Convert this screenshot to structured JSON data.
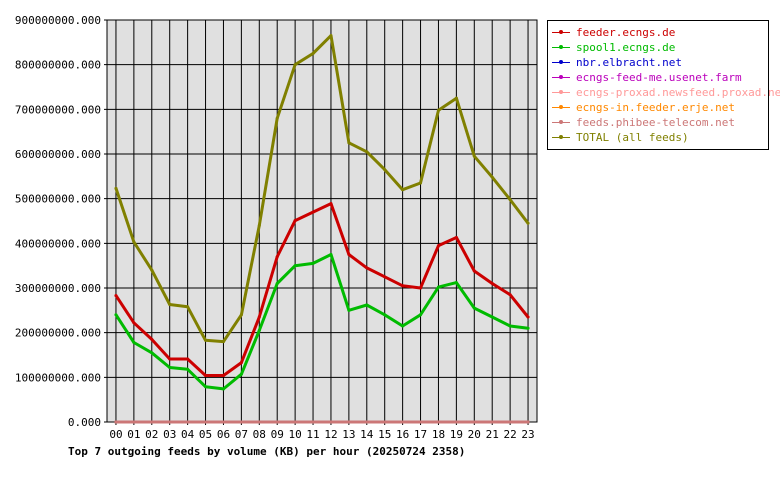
{
  "chart_data": {
    "type": "line",
    "title": "Top 7 outgoing feeds by volume (KB) per hour (20250724 2358)",
    "xlabel": "",
    "ylabel": "",
    "categories": [
      "00",
      "01",
      "02",
      "03",
      "04",
      "05",
      "06",
      "07",
      "08",
      "09",
      "10",
      "11",
      "12",
      "13",
      "14",
      "15",
      "16",
      "17",
      "18",
      "19",
      "20",
      "21",
      "22",
      "23"
    ],
    "ylim": [
      0,
      900000000
    ],
    "yticks": [
      "0.000",
      "100000000.000",
      "200000000.000",
      "300000000.000",
      "400000000.000",
      "500000000.000",
      "600000000.000",
      "700000000.000",
      "800000000.000",
      "900000000.000"
    ],
    "grid": true,
    "legend_position": "top-right",
    "series": [
      {
        "name": "feeder.ecngs.de",
        "color": "#cc0000",
        "values": [
          283000000,
          222000000,
          185000000,
          141000000,
          141000000,
          104000000,
          104000000,
          133000000,
          235000000,
          370000000,
          451000000,
          470000000,
          489000000,
          375000000,
          345000000,
          325000000,
          305000000,
          300000000,
          395000000,
          413000000,
          338000000,
          310000000,
          285000000,
          235000000
        ]
      },
      {
        "name": "spool1.ecngs.de",
        "color": "#00bb00",
        "values": [
          240000000,
          178000000,
          155000000,
          122000000,
          118000000,
          79000000,
          74000000,
          107000000,
          205000000,
          310000000,
          350000000,
          355000000,
          375000000,
          250000000,
          262000000,
          240000000,
          215000000,
          240000000,
          302000000,
          312000000,
          255000000,
          235000000,
          215000000,
          210000000
        ]
      },
      {
        "name": "nbr.elbracht.net",
        "color": "#0000cc",
        "values": [
          0,
          0,
          0,
          0,
          0,
          0,
          0,
          0,
          0,
          0,
          0,
          0,
          0,
          0,
          0,
          0,
          0,
          0,
          0,
          0,
          0,
          0,
          0,
          0
        ]
      },
      {
        "name": "ecngs-feed-me.usenet.farm",
        "color": "#bb00bb",
        "values": [
          0,
          0,
          0,
          0,
          0,
          0,
          0,
          0,
          0,
          0,
          0,
          0,
          0,
          0,
          0,
          0,
          0,
          0,
          0,
          0,
          0,
          0,
          0,
          0
        ]
      },
      {
        "name": "ecngs-proxad.newsfeed.proxad.net",
        "color": "#ff9999",
        "values": [
          0,
          0,
          0,
          0,
          0,
          0,
          0,
          0,
          0,
          0,
          0,
          0,
          0,
          0,
          0,
          0,
          0,
          0,
          0,
          0,
          0,
          0,
          0,
          0
        ]
      },
      {
        "name": "ecngs-in.feeder.erje.net",
        "color": "#ff8800",
        "values": [
          0,
          0,
          0,
          0,
          0,
          0,
          0,
          0,
          0,
          0,
          0,
          0,
          0,
          0,
          0,
          0,
          0,
          0,
          0,
          0,
          0,
          0,
          0,
          0
        ]
      },
      {
        "name": "feeds.phibee-telecom.net",
        "color": "#cc7777",
        "values": [
          0,
          0,
          0,
          0,
          0,
          0,
          0,
          0,
          0,
          0,
          0,
          0,
          0,
          0,
          0,
          0,
          0,
          0,
          0,
          0,
          0,
          0,
          0,
          0
        ]
      },
      {
        "name": "TOTAL (all feeds)",
        "color": "#808000",
        "values": [
          523000000,
          403000000,
          340000000,
          263000000,
          258000000,
          183000000,
          180000000,
          240000000,
          440000000,
          680000000,
          800000000,
          825000000,
          865000000,
          625000000,
          605000000,
          565000000,
          520000000,
          535000000,
          698000000,
          725000000,
          595000000,
          548000000,
          498000000,
          445000000
        ]
      }
    ]
  }
}
